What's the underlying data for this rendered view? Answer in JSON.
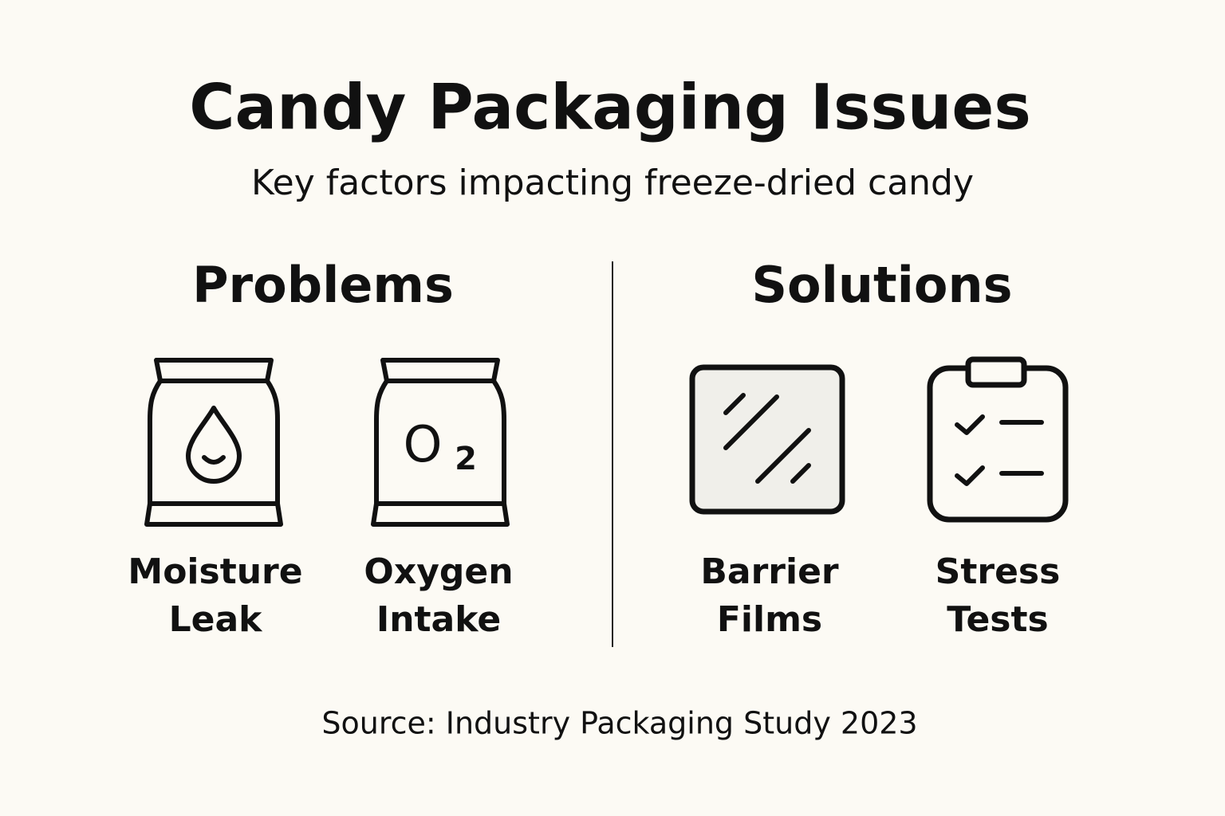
{
  "header": {
    "title": "Candy Packaging Issues",
    "subtitle": "Key factors impacting freeze-dried candy"
  },
  "sections": [
    {
      "heading": "Problems",
      "items": [
        {
          "lines": [
            "Moisture",
            "Leak"
          ]
        },
        {
          "lines": [
            "Oxygen",
            "Intake"
          ],
          "icon_text": [
            "O",
            "2"
          ]
        }
      ]
    },
    {
      "heading": "Solutions",
      "items": [
        {
          "lines": [
            "Barrier",
            "Films"
          ]
        },
        {
          "lines": [
            "Stress",
            "Tests"
          ]
        }
      ]
    }
  ],
  "footer": {
    "source": "Source: Industry Packaging Study 2023"
  }
}
